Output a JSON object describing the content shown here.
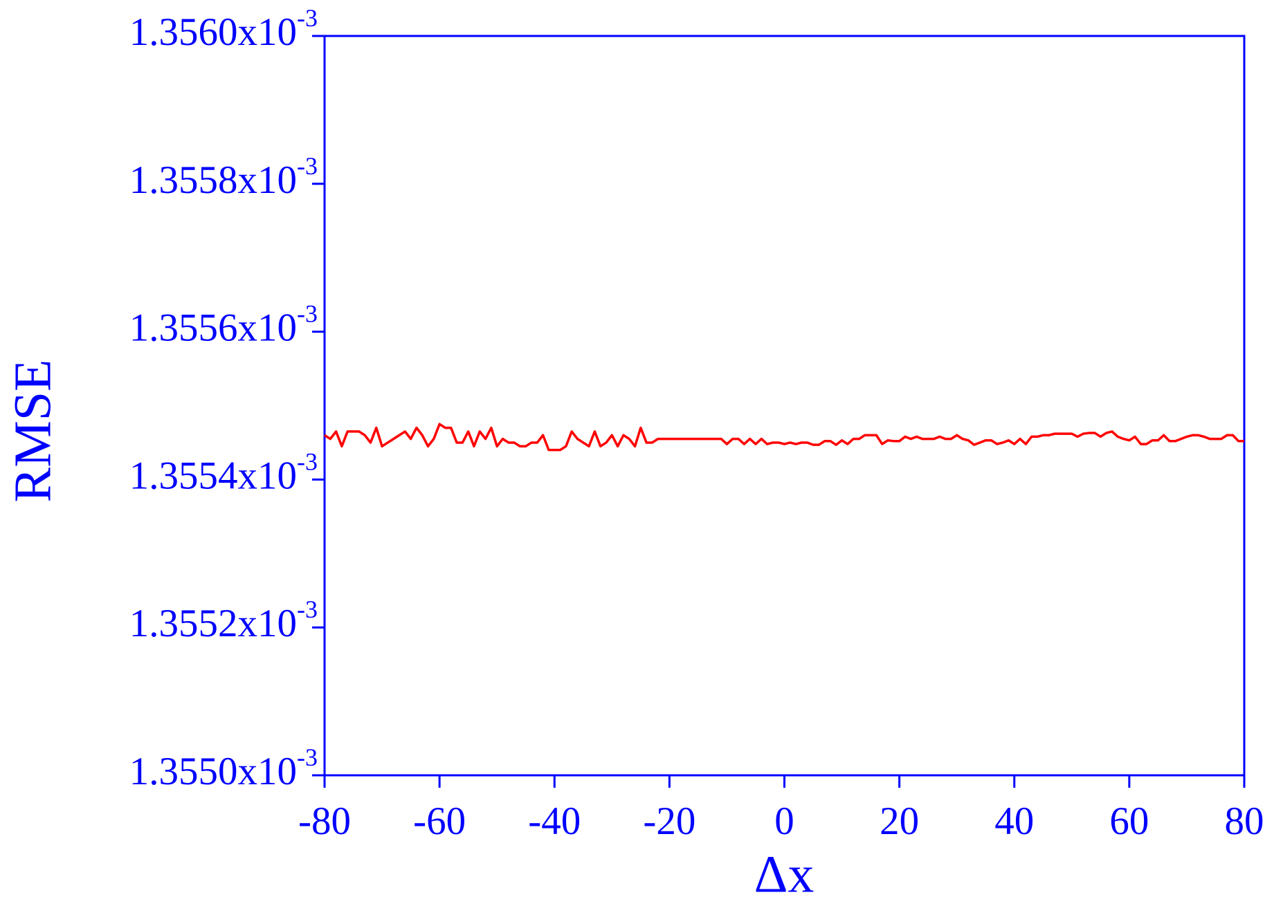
{
  "chart_data": {
    "type": "line",
    "x_label": "Δx",
    "y_label": "RMSE",
    "x": [
      -80,
      -79,
      -78,
      -77,
      -76,
      -75,
      -74,
      -73,
      -72,
      -71,
      -70,
      -69,
      -68,
      -67,
      -66,
      -65,
      -64,
      -63,
      -62,
      -61,
      -60,
      -59,
      -58,
      -57,
      -56,
      -55,
      -54,
      -53,
      -52,
      -51,
      -50,
      -49,
      -48,
      -47,
      -46,
      -45,
      -44,
      -43,
      -42,
      -41,
      -40,
      -39,
      -38,
      -37,
      -36,
      -35,
      -34,
      -33,
      -32,
      -31,
      -30,
      -29,
      -28,
      -27,
      -26,
      -25,
      -24,
      -23,
      -22,
      -21,
      -20,
      -19,
      -18,
      -17,
      -16,
      -15,
      -14,
      -13,
      -12,
      -11,
      -10,
      -9,
      -8,
      -7,
      -6,
      -5,
      -4,
      -3,
      -2,
      -1,
      0,
      1,
      2,
      3,
      4,
      5,
      6,
      7,
      8,
      9,
      10,
      11,
      12,
      13,
      14,
      15,
      16,
      17,
      18,
      19,
      20,
      21,
      22,
      23,
      24,
      25,
      26,
      27,
      28,
      29,
      30,
      31,
      32,
      33,
      34,
      35,
      36,
      37,
      38,
      39,
      40,
      41,
      42,
      43,
      44,
      45,
      46,
      47,
      48,
      49,
      50,
      51,
      52,
      53,
      54,
      55,
      56,
      57,
      58,
      59,
      60,
      61,
      62,
      63,
      64,
      65,
      66,
      67,
      68,
      69,
      70,
      71,
      72,
      73,
      74,
      75,
      76,
      77,
      78,
      79,
      80
    ],
    "values": [
      0.00135546,
      0.001355455,
      0.001355465,
      0.001355445,
      0.001355465,
      0.001355465,
      0.001355465,
      0.00135546,
      0.00135545,
      0.00135547,
      0.001355445,
      0.00135545,
      0.001355455,
      0.00135546,
      0.001355465,
      0.001355455,
      0.00135547,
      0.00135546,
      0.001355445,
      0.001355455,
      0.001355475,
      0.00135547,
      0.00135547,
      0.00135545,
      0.00135545,
      0.001355465,
      0.001355445,
      0.001355465,
      0.001355455,
      0.00135547,
      0.001355445,
      0.001355455,
      0.00135545,
      0.00135545,
      0.001355445,
      0.001355445,
      0.00135545,
      0.00135545,
      0.00135546,
      0.00135544,
      0.00135544,
      0.00135544,
      0.001355445,
      0.001355465,
      0.001355455,
      0.00135545,
      0.001355445,
      0.001355465,
      0.001355445,
      0.00135545,
      0.00135546,
      0.001355445,
      0.00135546,
      0.001355455,
      0.001355445,
      0.00135547,
      0.00135545,
      0.00135545,
      0.001355455,
      0.001355455,
      0.001355455,
      0.001355455,
      0.001355455,
      0.001355455,
      0.001355455,
      0.001355455,
      0.001355455,
      0.001355455,
      0.001355455,
      0.001355455,
      0.001355448,
      0.001355455,
      0.001355455,
      0.001355448,
      0.001355455,
      0.001355448,
      0.001355455,
      0.001355448,
      0.00135545,
      0.00135545,
      0.001355448,
      0.00135545,
      0.001355448,
      0.00135545,
      0.00135545,
      0.001355447,
      0.001355447,
      0.001355452,
      0.001355452,
      0.001355447,
      0.001355453,
      0.001355448,
      0.001355455,
      0.001355455,
      0.00135546,
      0.00135546,
      0.00135546,
      0.001355448,
      0.001355453,
      0.001355452,
      0.001355452,
      0.001355458,
      0.001355455,
      0.001355458,
      0.001355455,
      0.001355455,
      0.001355455,
      0.001355458,
      0.001355455,
      0.001355455,
      0.00135546,
      0.001355455,
      0.001355453,
      0.001355447,
      0.00135545,
      0.001355453,
      0.001355453,
      0.001355448,
      0.00135545,
      0.001355453,
      0.001355448,
      0.001355455,
      0.001355448,
      0.001355458,
      0.001355458,
      0.00135546,
      0.00135546,
      0.001355462,
      0.001355462,
      0.001355462,
      0.001355462,
      0.001355458,
      0.001355462,
      0.001355463,
      0.001355463,
      0.001355458,
      0.001355463,
      0.001355465,
      0.001355458,
      0.001355455,
      0.001355453,
      0.001355458,
      0.001355448,
      0.001355448,
      0.001355453,
      0.001355453,
      0.00135546,
      0.001355452,
      0.001355452,
      0.001355455,
      0.001355458,
      0.00135546,
      0.00135546,
      0.001355458,
      0.001355455,
      0.001355455,
      0.001355455,
      0.00135546,
      0.00135546,
      0.001355452,
      0.001355452
    ],
    "color": "#ff0000",
    "axis_color": "#0000ff",
    "xlim": [
      -80,
      80
    ],
    "xticks": [
      -80,
      -60,
      -40,
      -20,
      0,
      20,
      40,
      60,
      80
    ],
    "ylim": [
      0.001355,
      0.001356
    ],
    "yticks": [
      {
        "value": 0.001355,
        "label": "1.3550x10-3"
      },
      {
        "value": 0.0013552,
        "label": "1.3552x10-3"
      },
      {
        "value": 0.0013554,
        "label": "1.3554x10-3"
      },
      {
        "value": 0.0013556,
        "label": "1.3556x10-3"
      },
      {
        "value": 0.0013558,
        "label": "1.3558x10-3"
      },
      {
        "value": 0.001356,
        "label": "1.3560x10-3"
      }
    ]
  }
}
